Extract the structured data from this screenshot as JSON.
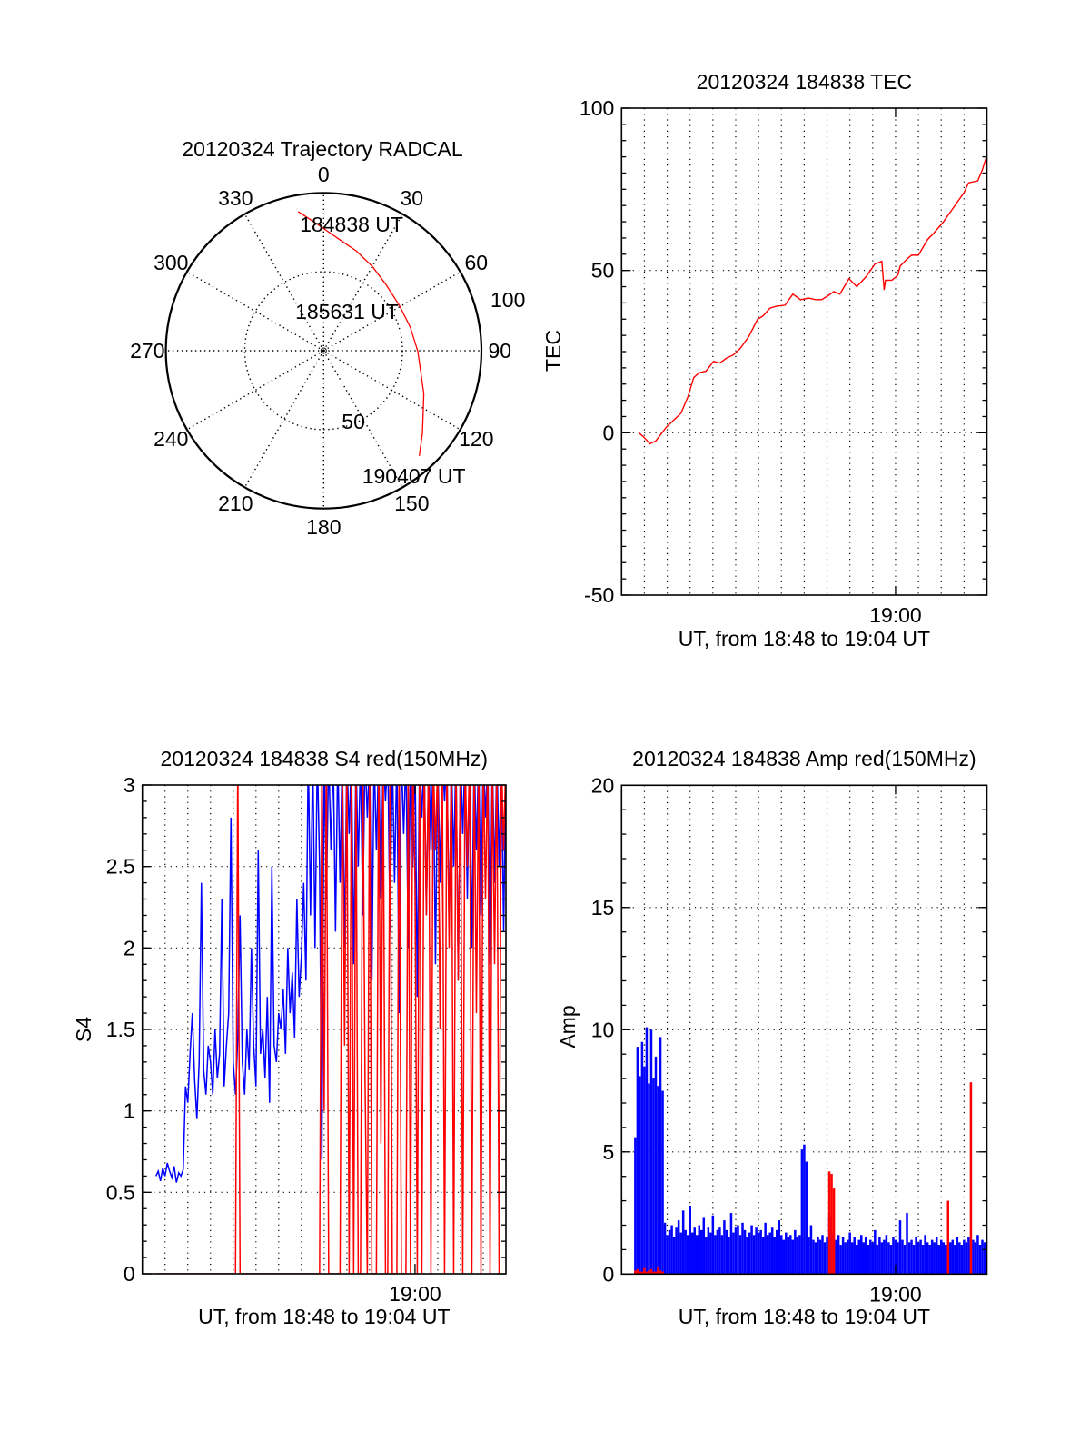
{
  "colors": {
    "axis": "#000000",
    "grid": "#000000",
    "red": "#ff0000",
    "blue": "#0000ff",
    "background": "#ffffff"
  },
  "chart_data": [
    {
      "id": "trajectory",
      "type": "polar",
      "title": "20120324 Trajectory RADCAL",
      "angles_deg": [
        0,
        30,
        60,
        90,
        120,
        150,
        180,
        210,
        240,
        270,
        300,
        330
      ],
      "angle_labels": [
        "0",
        "30",
        "60",
        "90",
        "120",
        "150",
        "180",
        "210",
        "240",
        "270",
        "300",
        "330"
      ],
      "rlim": [
        0,
        100
      ],
      "radial_rings": [
        50,
        100
      ],
      "radial_labels": [
        "50",
        "100"
      ],
      "grid": true,
      "trajectory": {
        "color": "#ff0000",
        "azimuth_deg": [
          349.6,
          356.1,
          7.9,
          18.0,
          30.1,
          43.4,
          59.5,
          74.8,
          90.4,
          113.2,
          129.8,
          137.7
        ],
        "zenith": [
          89.7,
          81.4,
          71.3,
          66.6,
          61.7,
          57.6,
          55.9,
          56.9,
          59.7,
          69.1,
          81.5,
          90.1
        ]
      },
      "time_labels": [
        {
          "text": "184838 UT",
          "azimuth_deg": 349.6,
          "zenith": 89.7
        },
        {
          "text": "185631 UT",
          "azimuth_deg": 64.1,
          "zenith": 56.7
        },
        {
          "text": "190407 UT",
          "azimuth_deg": 137.7,
          "zenith": 90.1
        }
      ]
    },
    {
      "id": "tec",
      "type": "line",
      "title": "20120324 184838 TEC",
      "xlabel": "UT, from 18:48 to 19:04 UT",
      "ylabel": "TEC",
      "xlim_minutes": [
        0,
        16
      ],
      "xgrid_step_minutes": 1,
      "xticks": [
        {
          "minutes": 12,
          "label": "19:00"
        }
      ],
      "ylim": [
        -50,
        100
      ],
      "yticks": [
        -50,
        0,
        50,
        100
      ],
      "ytick_labels": [
        "-50",
        "0",
        "50",
        "100"
      ],
      "yminor_step": 5,
      "grid": true,
      "series": [
        {
          "name": "TEC",
          "color": "#ff0000",
          "style": "line",
          "x_minutes": [
            0.76,
            1.0,
            1.24,
            1.5,
            1.96,
            2.3,
            2.6,
            2.9,
            3.16,
            3.4,
            3.7,
            4.03,
            4.3,
            4.6,
            4.9,
            5.2,
            5.56,
            5.96,
            6.2,
            6.5,
            6.8,
            7.16,
            7.5,
            7.84,
            8.2,
            8.5,
            8.76,
            9.0,
            9.3,
            9.56,
            9.96,
            10.3,
            10.7,
            11.1,
            11.4,
            11.5,
            11.56,
            11.84,
            12.1,
            12.2,
            12.5,
            12.7,
            13.0,
            13.4,
            13.7,
            14.1,
            14.4,
            14.7,
            15.0,
            15.2,
            15.6,
            15.8,
            16.0
          ],
          "y": [
            0,
            -1.5,
            -3.4,
            -2.5,
            1.7,
            4,
            6,
            11,
            17,
            18.5,
            19,
            22,
            21.5,
            23,
            24,
            26,
            29.5,
            35,
            36,
            38.4,
            39,
            39.3,
            42.7,
            41,
            41.5,
            41,
            41,
            42,
            43.5,
            42.7,
            47.5,
            45,
            48,
            52,
            52.8,
            44,
            47,
            47,
            48.5,
            51.3,
            53.5,
            54.7,
            54.7,
            59.5,
            61.7,
            65,
            68,
            71,
            74,
            77,
            77.6,
            81,
            85.4
          ]
        }
      ]
    },
    {
      "id": "s4",
      "type": "line",
      "title": "20120324 184838 S4 red(150MHz)",
      "xlabel": "UT, from 18:48 to 19:04 UT",
      "ylabel": "S4",
      "xlim_minutes": [
        0,
        16
      ],
      "xgrid_step_minutes": 1,
      "xticks": [
        {
          "minutes": 12,
          "label": "19:00"
        }
      ],
      "ylim": [
        0,
        3
      ],
      "yticks": [
        0,
        0.5,
        1,
        1.5,
        2,
        2.5,
        3
      ],
      "ytick_labels": [
        "0",
        "0.5",
        "1",
        "1.5",
        "2",
        "2.5",
        "3"
      ],
      "yminor_step": 0.1,
      "grid": true,
      "series": [
        {
          "name": "S4 blue",
          "color": "#0000ff",
          "style": "line",
          "t_start_minutes": 0.6,
          "t_step_minutes": 0.1,
          "y": [
            0.6,
            0.63,
            0.57,
            0.65,
            0.6,
            0.68,
            0.63,
            0.59,
            0.66,
            0.56,
            0.62,
            0.6,
            0.64,
            1.15,
            1.05,
            1.35,
            1.6,
            1.2,
            0.95,
            1.3,
            2.4,
            1.25,
            1.1,
            1.4,
            1.3,
            1.1,
            1.5,
            1.2,
            1.35,
            2.3,
            1.15,
            1.4,
            1.6,
            2.8,
            1.3,
            1.1,
            1.45,
            2.2,
            1.3,
            1.1,
            1.5,
            1.25,
            2.0,
            1.4,
            1.15,
            2.6,
            1.35,
            1.5,
            1.2,
            1.7,
            1.05,
            2.5,
            1.4,
            1.3,
            1.6,
            1.5,
            1.75,
            1.35,
            2.0,
            1.6,
            1.85,
            1.45,
            2.3,
            1.7,
            1.95,
            2.4,
            1.8,
            3.2,
            2.2,
            3.2,
            2.0,
            3.2,
            2.5,
            0.7,
            3.2,
            2.3,
            3.2,
            2.6,
            3.2,
            2.1,
            3.2,
            2.4,
            3.2,
            2.0,
            3.2,
            2.7,
            3.2,
            1.9,
            3.2,
            2.5,
            3.2,
            2.2,
            3.2,
            2.8,
            3.2,
            1.8,
            3.2,
            2.6,
            3.2,
            2.3,
            3.2,
            2.9,
            3.2,
            2.1,
            3.2,
            2.4,
            3.2,
            1.6,
            3.2,
            2.7,
            3.2,
            2.0,
            3.2,
            2.5,
            3.2,
            1.7,
            3.2,
            2.8,
            3.2,
            2.2,
            3.2,
            2.6,
            3.2,
            1.9,
            3.2,
            2.4,
            3.2,
            2.9,
            3.2,
            2.1,
            3.2,
            2.5,
            3.2,
            1.8,
            3.2,
            2.7,
            3.2,
            2.3,
            3.2,
            2.0,
            3.2,
            2.6,
            3.2,
            2.2,
            3.2,
            2.8,
            3.2,
            1.9,
            3.2,
            2.4,
            3.2,
            2.5,
            3.2,
            2.1,
            3.2
          ]
        },
        {
          "name": "S4 red",
          "color": "#ff0000",
          "style": "line",
          "t_start_minutes": 0.6,
          "t_step_minutes": 0.1,
          "y": [
            0,
            0,
            0,
            0,
            0,
            0,
            0,
            0,
            0,
            0,
            0,
            0,
            0,
            0,
            0,
            0,
            0,
            0,
            0,
            0,
            0,
            0,
            0,
            0,
            0,
            0,
            0,
            0,
            0,
            0,
            0,
            0,
            0,
            0,
            0,
            0,
            3.2,
            0,
            0,
            0,
            0,
            0,
            0,
            0,
            0,
            0,
            0,
            0,
            0,
            0,
            0,
            0,
            0,
            0,
            0,
            0,
            0,
            0,
            0,
            0,
            0,
            0,
            0,
            0,
            0,
            0,
            0,
            0,
            0,
            0,
            0,
            0,
            0,
            3.2,
            1.0,
            3.2,
            0,
            0,
            0,
            0,
            0,
            0,
            3.2,
            1.4,
            3.2,
            0,
            3.2,
            0,
            3.2,
            0,
            0,
            3.2,
            1.2,
            0,
            3.2,
            0,
            0,
            0,
            3.2,
            0.8,
            3.2,
            0,
            0,
            3.2,
            0,
            0,
            0,
            3.2,
            0,
            0,
            0,
            3.2,
            0,
            3.2,
            2.4,
            0,
            3.2,
            0,
            3.2,
            2.2,
            3.2,
            0,
            3.2,
            2.6,
            3.2,
            1.5,
            3.2,
            0,
            3.2,
            2.0,
            3.2,
            0,
            3.2,
            1.8,
            3.2,
            0,
            3.2,
            2.5,
            3.2,
            0,
            3.2,
            1.6,
            3.2,
            0,
            3.2,
            2.3,
            3.2,
            0,
            3.2,
            1.9,
            3.2,
            0,
            3.2,
            2.6,
            3.2
          ]
        }
      ]
    },
    {
      "id": "amp",
      "type": "bar",
      "title": "20120324 184838 Amp red(150MHz)",
      "xlabel": "UT, from 18:48 to 19:04 UT",
      "ylabel": "Amp",
      "xlim_minutes": [
        0,
        16
      ],
      "xgrid_step_minutes": 1,
      "xticks": [
        {
          "minutes": 12,
          "label": "19:00"
        }
      ],
      "ylim": [
        0,
        20
      ],
      "yticks": [
        0,
        5,
        10,
        15,
        20
      ],
      "ytick_labels": [
        "0",
        "5",
        "10",
        "15",
        "20"
      ],
      "yminor_step": 1,
      "grid": true,
      "series": [
        {
          "name": "Amp blue",
          "color": "#0000ff",
          "style": "bars",
          "t_start_minutes": 0.6,
          "t_step_minutes": 0.1,
          "y": [
            5.6,
            9.3,
            8.1,
            9.5,
            8.5,
            10.1,
            7.8,
            10.0,
            8.0,
            8.9,
            7.7,
            9.7,
            7.5,
            2.1,
            1.6,
            1.8,
            2.0,
            1.5,
            1.9,
            2.2,
            1.7,
            2.6,
            1.8,
            1.6,
            2.8,
            1.7,
            1.9,
            1.6,
            2.0,
            1.8,
            2.3,
            1.5,
            1.9,
            1.7,
            2.4,
            1.6,
            1.8,
            1.9,
            1.6,
            2.2,
            1.8,
            1.5,
            2.5,
            1.7,
            1.9,
            2.0,
            1.6,
            2.1,
            1.8,
            1.5,
            1.7,
            2.0,
            1.6,
            1.9,
            1.7,
            1.8,
            1.5,
            2.1,
            1.6,
            1.7,
            1.9,
            1.5,
            1.8,
            2.2,
            1.6,
            1.4,
            1.7,
            1.5,
            1.6,
            1.4,
            1.8,
            1.5,
            1.6,
            5.1,
            5.3,
            4.6,
            1.5,
            2.0,
            1.4,
            1.3,
            1.5,
            1.4,
            1.6,
            1.3,
            1.5,
            2.4,
            1.7,
            1.3,
            1.4,
            1.6,
            1.2,
            1.5,
            1.3,
            1.4,
            1.7,
            1.3,
            1.5,
            1.2,
            1.4,
            1.6,
            1.3,
            1.5,
            1.2,
            1.4,
            1.3,
            1.8,
            1.2,
            1.5,
            1.3,
            1.4,
            1.6,
            1.3,
            1.2,
            1.5,
            1.4,
            1.3,
            2.2,
            1.4,
            1.2,
            2.5,
            1.3,
            1.4,
            1.2,
            1.5,
            1.3,
            1.4,
            1.2,
            1.6,
            1.3,
            1.2,
            1.4,
            1.3,
            1.5,
            1.2,
            1.4,
            1.3,
            1.2,
            1.5,
            1.3,
            1.4,
            1.2,
            1.5,
            1.3,
            1.2,
            1.4,
            1.3,
            1.5,
            1.2,
            1.4,
            1.3,
            1.6,
            1.2,
            1.4,
            1.3,
            1.6
          ]
        },
        {
          "name": "Amp red",
          "color": "#ff0000",
          "style": "bars",
          "t_start_minutes": 0.6,
          "t_step_minutes": 0.1,
          "y": [
            0.15,
            0.2,
            0.1,
            0.1,
            0.25,
            0.1,
            0.15,
            0.2,
            0.1,
            0.1,
            0.3,
            0.15,
            0.1,
            0,
            0,
            0,
            0,
            0,
            0,
            0,
            0,
            0,
            0,
            0,
            0,
            0,
            0,
            0,
            0,
            0,
            0,
            0,
            0,
            0,
            0,
            0,
            0,
            0,
            0,
            0,
            0,
            0,
            0,
            0,
            0,
            0,
            0,
            0,
            0,
            0,
            0,
            0,
            0,
            0,
            0,
            0,
            0,
            0,
            0,
            0,
            0,
            0,
            0,
            0,
            0,
            0,
            0,
            0,
            0,
            0,
            0,
            0,
            0,
            0,
            0,
            0,
            0,
            0,
            0,
            0,
            0,
            0,
            0,
            0,
            0,
            4.2,
            4.1,
            3.5,
            0,
            0,
            0,
            0,
            0,
            0,
            0,
            0,
            0,
            0,
            0,
            0,
            0,
            0,
            0,
            0,
            0,
            0,
            0,
            0,
            0,
            0,
            0,
            0,
            0,
            0,
            0,
            0,
            0,
            0,
            0,
            0,
            0,
            0,
            0,
            0,
            0,
            0,
            0,
            0,
            0,
            0,
            0,
            0,
            0,
            0,
            0,
            0,
            0,
            3.0,
            0,
            0,
            0,
            0,
            0,
            0,
            0,
            0,
            0,
            7.85,
            0,
            0,
            0,
            0,
            0,
            0,
            0
          ]
        }
      ]
    }
  ]
}
